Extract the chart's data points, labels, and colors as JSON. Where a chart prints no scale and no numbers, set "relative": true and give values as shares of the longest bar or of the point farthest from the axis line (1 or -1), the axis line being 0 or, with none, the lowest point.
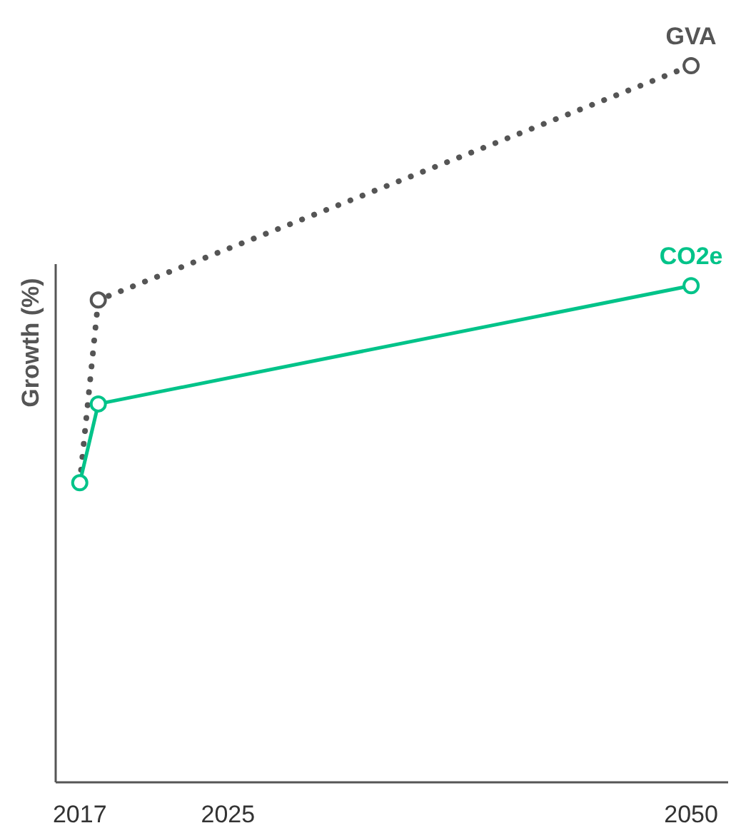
{
  "chart_data": {
    "type": "line",
    "ylabel": "Growth (%)",
    "relative": true,
    "x": [
      2017,
      2018,
      2050
    ],
    "xlim": [
      2015.7,
      2052
    ],
    "xticks": [
      2017,
      2025,
      2050
    ],
    "marker": "circle",
    "grid": false,
    "series": [
      {
        "name": "GVA",
        "color": "#555555",
        "line_style": "dotted",
        "values": [
          0.418,
          0.673,
          1
        ]
      },
      {
        "name": "CO2e",
        "color": "#00c389",
        "line_style": "solid",
        "values": [
          0.418,
          0.528,
          0.693
        ]
      }
    ]
  }
}
